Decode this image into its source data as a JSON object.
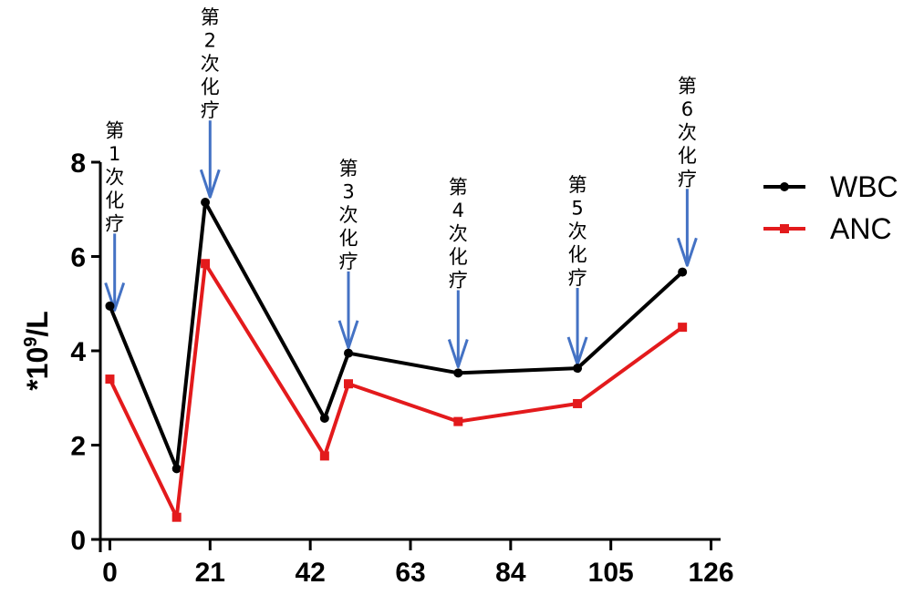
{
  "chart_data": {
    "type": "line",
    "xlabel": "",
    "ylabel": "*10^9/L",
    "ylabel_parts": {
      "pre": "*10",
      "sup": "9",
      "post": "/L"
    },
    "xlim": [
      -2,
      128
    ],
    "ylim": [
      0,
      8
    ],
    "xticks": [
      "0",
      "21",
      "42",
      "63",
      "84",
      "105",
      "126"
    ],
    "yticks": [
      "0",
      "2",
      "4",
      "6",
      "8"
    ],
    "grid": false,
    "legend_position": "right",
    "series": [
      {
        "name": "WBC",
        "color": "#000000",
        "marker": "circle",
        "x": [
          0,
          14,
          20,
          45,
          50,
          73,
          98,
          120
        ],
        "y": [
          4.95,
          1.5,
          7.15,
          2.57,
          3.95,
          3.53,
          3.63,
          5.67
        ]
      },
      {
        "name": "ANC",
        "color": "#e31a1c",
        "marker": "square",
        "x": [
          0,
          14,
          20,
          45,
          50,
          73,
          98,
          120
        ],
        "y": [
          3.4,
          0.47,
          5.85,
          1.77,
          3.3,
          2.5,
          2.88,
          4.5
        ]
      }
    ],
    "annotations": [
      {
        "lines": [
          "第",
          "1",
          "次",
          "化",
          "疗"
        ],
        "x": 1,
        "y": 4.9
      },
      {
        "lines": [
          "第",
          "2",
          "次",
          "化",
          "疗"
        ],
        "x": 21,
        "y": 7.3
      },
      {
        "lines": [
          "第",
          "3",
          "次",
          "化",
          "疗"
        ],
        "x": 50,
        "y": 4.1
      },
      {
        "lines": [
          "第",
          "4",
          "次",
          "化",
          "疗"
        ],
        "x": 73,
        "y": 3.7
      },
      {
        "lines": [
          "第",
          "5",
          "次",
          "化",
          "疗"
        ],
        "x": 98,
        "y": 3.75
      },
      {
        "lines": [
          "第",
          "6",
          "次",
          "化",
          "疗"
        ],
        "x": 121,
        "y": 5.85
      }
    ],
    "arrow_color": "#4472c4"
  }
}
